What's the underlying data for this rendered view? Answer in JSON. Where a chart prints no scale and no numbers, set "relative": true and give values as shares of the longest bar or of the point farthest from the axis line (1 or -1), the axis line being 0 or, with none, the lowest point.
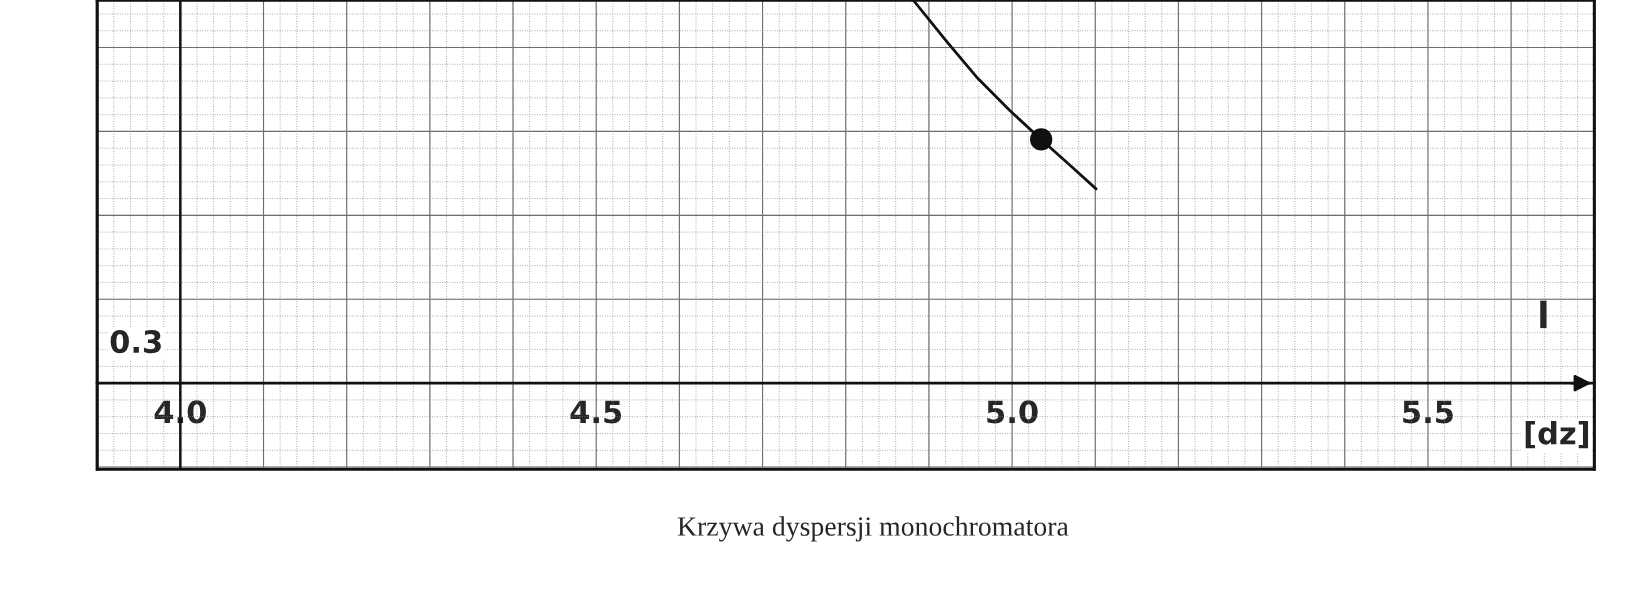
{
  "chart_data": {
    "type": "line",
    "title": "Krzywa dyspersji monochromatora",
    "xlabel": "l",
    "relative": true,
    "annotations": [
      "0.3",
      "[dz]"
    ],
    "xlim": [
      3.9,
      5.7
    ],
    "xticks": [
      {
        "value": 4.0,
        "label": "4.0"
      },
      4.5,
      {
        "value": 5.0,
        "label": "5.0"
      },
      5.5
    ],
    "grid": true,
    "ref_lines": [
      {
        "axis": "x",
        "value": 4.0,
        "color": "#111111"
      }
    ],
    "series": [
      {
        "color": "#111111",
        "marker": "none",
        "line_style": "solid",
        "x": [
          4.881,
          4.922,
          4.959,
          4.997,
          5.035,
          5.073,
          5.101
        ],
        "values": [
          1.0,
          0.89,
          0.795,
          0.712,
          0.636,
          0.562,
          0.507
        ]
      },
      {
        "type": "scatter",
        "color": "#111111",
        "marker": "circle",
        "x": [
          5.035
        ],
        "values": [
          0.636
        ]
      }
    ]
  }
}
